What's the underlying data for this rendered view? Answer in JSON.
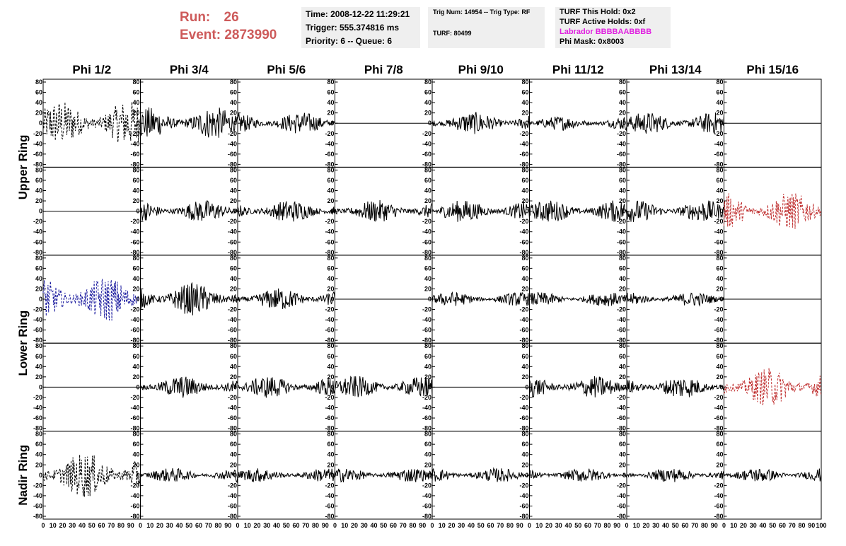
{
  "header": {
    "run_label": "Run:",
    "run_value": "26",
    "event_label": "Event:",
    "event_value": "2873990"
  },
  "info_time": {
    "time": "Time: 2008-12-22 11:29:21",
    "trigger": "Trigger: 555.374816 ms",
    "priority": "Priority: 6 -- Queue: 6"
  },
  "info_trig": {
    "trig": "Trig Num: 14954 -- Trig Type: RF",
    "turf": "TURF: 80499"
  },
  "info_turf": {
    "this_hold": "TURF This Hold: 0x2",
    "active_holds": "TURF Active Holds: 0xf",
    "labrador": "Labrador BBBBAABBBB",
    "phi_mask": "Phi Mask: 0x8003"
  },
  "colors": {
    "header_red": "#cd5a5a",
    "labrador": "#e020e0",
    "blue": "#1e1ea0",
    "red": "#c03030",
    "black": "#000000"
  },
  "columns": [
    "Phi 1/2",
    "Phi 3/4",
    "Phi 5/6",
    "Phi 7/8",
    "Phi 9/10",
    "Phi 11/12",
    "Phi 13/14",
    "Phi 15/16"
  ],
  "rows": [
    "Upper Ring",
    "Lower Ring",
    "Nadir Ring"
  ],
  "y_ticks": [
    "80",
    "60",
    "40",
    "20",
    "0",
    "-20",
    "-40",
    "-60",
    "-80"
  ],
  "x_ticks": [
    "0",
    "10",
    "20",
    "30",
    "40",
    "50",
    "60",
    "70",
    "80",
    "90",
    "100"
  ],
  "chart_data": {
    "type": "line",
    "xlim": [
      0,
      100
    ],
    "ylim": [
      -80,
      80
    ],
    "grid": false,
    "panels": [
      [
        "dashed-large",
        "solid-large",
        "solid-mid",
        "flat",
        "solid-mid",
        "solid-small",
        "solid-mid",
        "flat"
      ],
      [
        "flat",
        "solid-mid",
        "solid-mid",
        "solid-mid",
        "solid-mid",
        "solid-mid",
        "solid-mid",
        "dashed-red"
      ],
      [
        "dashed-blue",
        "solid-large",
        "solid-mid",
        "flat",
        "solid-small",
        "solid-small",
        "solid-small",
        "flat"
      ],
      [
        "flat",
        "solid-mid",
        "solid-mid",
        "solid-mid",
        "flat",
        "solid-mid",
        "solid-mid",
        "dashed-red"
      ],
      [
        "dashed-large",
        "solid-small",
        "solid-small",
        "solid-small",
        "solid-small",
        "solid-small",
        "solid-small",
        "solid-small"
      ]
    ]
  }
}
